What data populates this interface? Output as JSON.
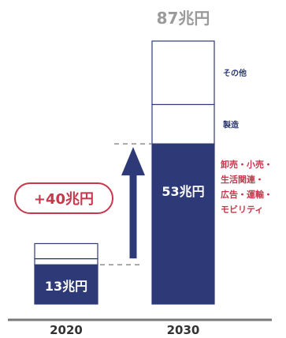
{
  "chart_data": {
    "type": "bar",
    "stacked": true,
    "categories": [
      "2020",
      "2030"
    ],
    "totals": {
      "2020": "",
      "2030": "87兆円"
    },
    "bars": [
      {
        "category": "2020",
        "segments": [
          {
            "value": 13,
            "label": "13兆円",
            "fill": "#2e3a78",
            "stroke": "#2e3a78"
          },
          {
            "value": 2,
            "label": "",
            "fill": "#ffffff",
            "stroke": "#2e3a78"
          },
          {
            "value": 5,
            "label": "",
            "fill": "#ffffff",
            "stroke": "#2e3a78"
          }
        ]
      },
      {
        "category": "2030",
        "segments": [
          {
            "value": 53,
            "label": "53兆円",
            "fill": "#2e3a78",
            "stroke": "#2e3a78",
            "side_label": "卸売・小売・生活関連・広告・運輸・モビリティ"
          },
          {
            "value": 13,
            "label": "",
            "fill": "#ffffff",
            "stroke": "#2e3a78",
            "side_label": "製造"
          },
          {
            "value": 21,
            "label": "",
            "fill": "#ffffff",
            "stroke": "#2e3a78",
            "side_label": "その他"
          }
        ]
      }
    ],
    "side_label_lines": {
      "cat0": [
        "その他"
      ],
      "cat1": [
        "製造"
      ],
      "cat2": [
        "卸売・小売・",
        "生活関連・",
        "広告・運輸・",
        "モビリティ"
      ]
    },
    "annotation": {
      "text": "+40兆円",
      "color": "#c6384c"
    },
    "ylim": [
      0,
      92
    ],
    "xlabel": "",
    "ylabel": "",
    "title": ""
  },
  "colors": {
    "navy": "#2e3a78",
    "red": "#c6384c",
    "gray": "#9a9a9a",
    "axis": "#7a7a7a",
    "text": "#333333"
  }
}
